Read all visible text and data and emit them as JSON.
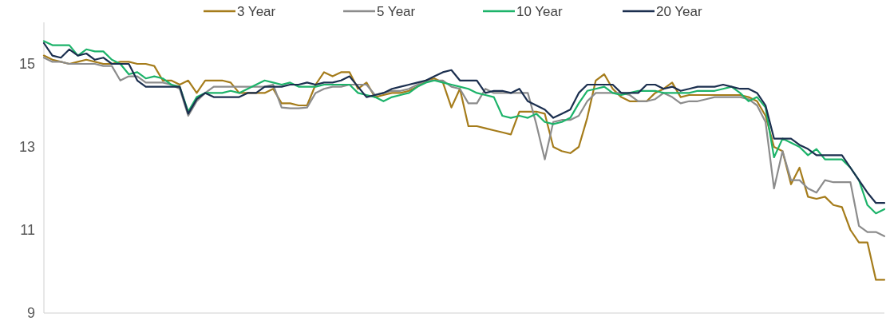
{
  "chart_data": {
    "type": "line",
    "categories": [
      null,
      null,
      null,
      null,
      null,
      null,
      null,
      null,
      null,
      null,
      null,
      null,
      null,
      null,
      null,
      null,
      null,
      null,
      null,
      null,
      null,
      null,
      null,
      null,
      null,
      null,
      null,
      null,
      null,
      null,
      null,
      null,
      null,
      null,
      null,
      null,
      null,
      null,
      null,
      null,
      null,
      null,
      null,
      null,
      null,
      null,
      null,
      null,
      null,
      null,
      null,
      null,
      null,
      null,
      null,
      null,
      null,
      null,
      null,
      null,
      null,
      null,
      null,
      null,
      null,
      null,
      null,
      null,
      null,
      null,
      null,
      null,
      null,
      null,
      null,
      null,
      null,
      null,
      null,
      null,
      null,
      null,
      null,
      null,
      null,
      null,
      null,
      null,
      null,
      null,
      null,
      null,
      null,
      null,
      null,
      null,
      null,
      null,
      null,
      null
    ],
    "ylim": [
      9,
      16
    ],
    "yticks": [
      9,
      11,
      13,
      15
    ],
    "grid": false,
    "legend": "top",
    "marker": "none",
    "line_style": "solid",
    "series": [
      {
        "name": "3 Year",
        "color": "#a57c1b",
        "values": [
          15.2,
          15.1,
          15.05,
          15.0,
          15.05,
          15.1,
          15.05,
          15.0,
          15.0,
          15.05,
          15.05,
          15.0,
          15.0,
          14.95,
          14.6,
          14.6,
          14.5,
          14.6,
          14.3,
          14.6,
          14.6,
          14.6,
          14.55,
          14.3,
          14.3,
          14.3,
          14.3,
          14.4,
          14.05,
          14.05,
          14.0,
          14.0,
          14.5,
          14.8,
          14.7,
          14.8,
          14.8,
          14.4,
          14.55,
          14.2,
          14.25,
          14.3,
          14.3,
          14.35,
          14.45,
          14.6,
          14.65,
          14.55,
          13.95,
          14.4,
          13.5,
          13.5,
          13.45,
          13.4,
          13.35,
          13.3,
          13.85,
          13.85,
          13.85,
          13.8,
          13.0,
          12.9,
          12.85,
          13.0,
          13.7,
          14.6,
          14.75,
          14.4,
          14.2,
          14.1,
          14.1,
          14.1,
          14.3,
          14.4,
          14.55,
          14.2,
          14.25,
          14.25,
          14.25,
          14.25,
          14.25,
          14.25,
          14.25,
          14.2,
          14.1,
          13.75,
          13.0,
          12.9,
          12.1,
          12.5,
          11.8,
          11.75,
          11.8,
          11.6,
          11.55,
          11.0,
          10.7,
          10.7,
          9.8,
          9.8
        ]
      },
      {
        "name": "5 Year",
        "color": "#8c8c8c",
        "values": [
          15.15,
          15.05,
          15.05,
          15.0,
          15.0,
          15.0,
          15.0,
          14.95,
          14.95,
          14.6,
          14.7,
          14.7,
          14.55,
          14.55,
          14.55,
          14.5,
          14.4,
          13.75,
          14.1,
          14.3,
          14.45,
          14.45,
          14.45,
          14.45,
          14.45,
          14.45,
          14.45,
          14.5,
          13.95,
          13.93,
          13.93,
          13.95,
          14.3,
          14.4,
          14.45,
          14.45,
          14.5,
          14.5,
          14.5,
          14.25,
          14.3,
          14.35,
          14.35,
          14.4,
          14.5,
          14.6,
          14.6,
          14.6,
          14.45,
          14.4,
          14.05,
          14.05,
          14.4,
          14.3,
          14.3,
          14.3,
          14.3,
          14.3,
          13.55,
          12.7,
          13.6,
          13.65,
          13.65,
          13.75,
          14.1,
          14.3,
          14.3,
          14.3,
          14.3,
          14.25,
          14.1,
          14.1,
          14.15,
          14.3,
          14.2,
          14.05,
          14.1,
          14.1,
          14.15,
          14.2,
          14.2,
          14.2,
          14.2,
          14.15,
          14.0,
          13.6,
          12.0,
          12.9,
          12.2,
          12.2,
          12.0,
          11.9,
          12.2,
          12.15,
          12.15,
          12.15,
          11.1,
          10.95,
          10.95,
          10.85
        ]
      },
      {
        "name": "10 Year",
        "color": "#1db36a",
        "values": [
          15.55,
          15.45,
          15.45,
          15.45,
          15.2,
          15.35,
          15.3,
          15.3,
          15.1,
          15.0,
          14.75,
          14.8,
          14.65,
          14.7,
          14.65,
          14.5,
          14.45,
          13.85,
          14.2,
          14.3,
          14.3,
          14.3,
          14.35,
          14.3,
          14.4,
          14.5,
          14.6,
          14.55,
          14.5,
          14.55,
          14.45,
          14.45,
          14.45,
          14.5,
          14.5,
          14.5,
          14.5,
          14.3,
          14.25,
          14.2,
          14.1,
          14.2,
          14.25,
          14.3,
          14.45,
          14.55,
          14.6,
          14.55,
          14.5,
          14.45,
          14.4,
          14.3,
          14.25,
          14.2,
          13.75,
          13.7,
          13.75,
          13.7,
          13.8,
          13.6,
          13.55,
          13.6,
          13.7,
          14.05,
          14.35,
          14.4,
          14.45,
          14.3,
          14.25,
          14.3,
          14.35,
          14.35,
          14.35,
          14.3,
          14.3,
          14.3,
          14.3,
          14.35,
          14.35,
          14.35,
          14.4,
          14.45,
          14.3,
          14.1,
          14.2,
          13.95,
          12.75,
          13.2,
          13.1,
          13.0,
          12.8,
          12.95,
          12.7,
          12.7,
          12.7,
          12.5,
          12.2,
          11.6,
          11.4,
          11.5
        ]
      },
      {
        "name": "20 Year",
        "color": "#1b2f4f",
        "values": [
          15.5,
          15.2,
          15.15,
          15.35,
          15.2,
          15.25,
          15.1,
          15.15,
          15.0,
          15.0,
          15.0,
          14.6,
          14.45,
          14.45,
          14.45,
          14.45,
          14.45,
          13.8,
          14.15,
          14.3,
          14.2,
          14.2,
          14.2,
          14.2,
          14.3,
          14.3,
          14.45,
          14.45,
          14.45,
          14.5,
          14.5,
          14.55,
          14.5,
          14.55,
          14.55,
          14.6,
          14.7,
          14.45,
          14.2,
          14.25,
          14.3,
          14.4,
          14.45,
          14.5,
          14.55,
          14.6,
          14.7,
          14.8,
          14.85,
          14.6,
          14.6,
          14.6,
          14.3,
          14.35,
          14.35,
          14.3,
          14.4,
          14.1,
          14.0,
          13.9,
          13.7,
          13.8,
          13.9,
          14.3,
          14.5,
          14.5,
          14.5,
          14.5,
          14.3,
          14.3,
          14.3,
          14.5,
          14.5,
          14.4,
          14.45,
          14.35,
          14.4,
          14.45,
          14.45,
          14.45,
          14.5,
          14.45,
          14.4,
          14.4,
          14.3,
          14.0,
          13.2,
          13.2,
          13.2,
          13.05,
          12.95,
          12.8,
          12.8,
          12.8,
          12.8,
          12.5,
          12.2,
          11.9,
          11.65,
          11.65
        ]
      }
    ]
  }
}
